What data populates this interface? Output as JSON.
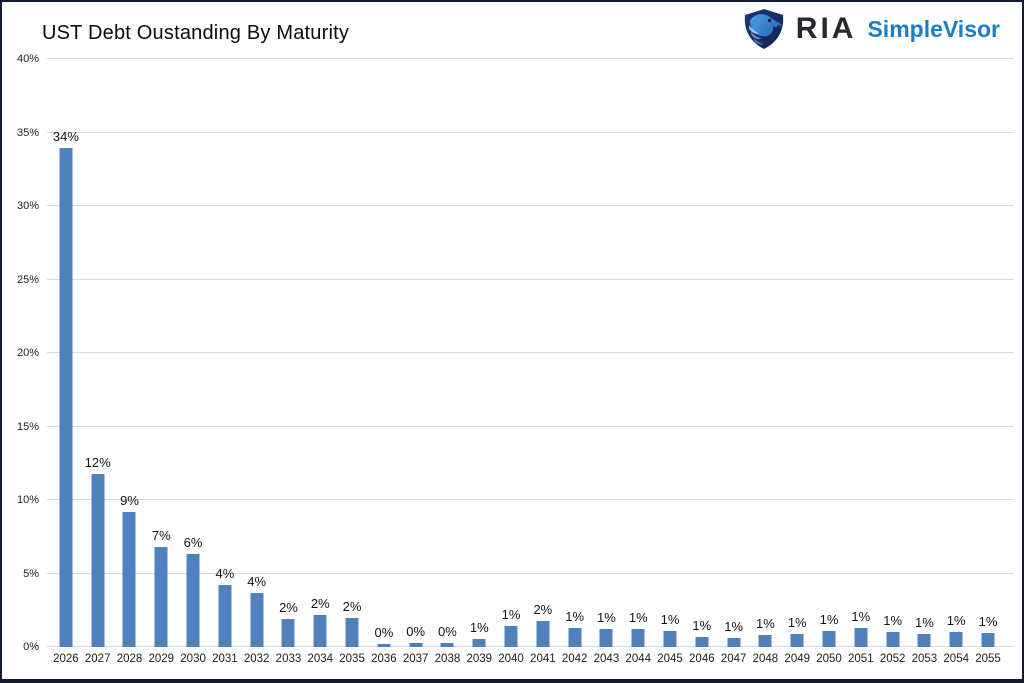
{
  "header": {
    "logo": {
      "ria_text": "RIA",
      "brand_text": "SimpleVisor",
      "ria_color": "#26282c",
      "brand_color": "#1b7ec2",
      "eagle_dark": "#16295e",
      "eagle_mid": "#2a6cb8",
      "eagle_light": "#4aa0e4"
    }
  },
  "chart_data": {
    "type": "bar",
    "title": "UST Debt Oustanding By Maturity",
    "xlabel": "",
    "ylabel": "",
    "ylim": [
      0,
      40
    ],
    "ytick_step": 5,
    "ytick_labels": [
      "0%",
      "5%",
      "10%",
      "15%",
      "20%",
      "25%",
      "30%",
      "35%",
      "40%"
    ],
    "grid": true,
    "legend": false,
    "bar_color": "#4f81bd",
    "categories": [
      "2026",
      "2027",
      "2028",
      "2029",
      "2030",
      "2031",
      "2032",
      "2033",
      "2034",
      "2035",
      "2036",
      "2037",
      "2038",
      "2039",
      "2040",
      "2041",
      "2042",
      "2043",
      "2044",
      "2045",
      "2046",
      "2047",
      "2048",
      "2049",
      "2050",
      "2051",
      "2052",
      "2053",
      "2054",
      "2055"
    ],
    "labels": [
      "34%",
      "12%",
      "9%",
      "7%",
      "6%",
      "4%",
      "4%",
      "2%",
      "2%",
      "2%",
      "0%",
      "0%",
      "0%",
      "1%",
      "1%",
      "2%",
      "1%",
      "1%",
      "1%",
      "1%",
      "1%",
      "1%",
      "1%",
      "1%",
      "1%",
      "1%",
      "1%",
      "1%",
      "1%",
      "1%"
    ],
    "values": [
      34,
      12,
      9,
      7,
      6,
      4,
      4,
      2,
      2,
      2,
      0,
      0,
      0,
      1,
      1,
      2,
      1,
      1,
      1,
      1,
      1,
      1,
      1,
      1,
      1,
      1,
      1,
      1,
      1,
      1
    ],
    "bar_heights_pct": [
      33.95,
      11.8,
      9.2,
      6.8,
      6.3,
      4.2,
      3.7,
      1.9,
      2.2,
      1.95,
      0.2,
      0.25,
      0.3,
      0.55,
      1.4,
      1.75,
      1.3,
      1.2,
      1.25,
      1.1,
      0.65,
      0.6,
      0.8,
      0.9,
      1.1,
      1.3,
      1.05,
      0.9,
      1.05,
      0.95
    ]
  }
}
